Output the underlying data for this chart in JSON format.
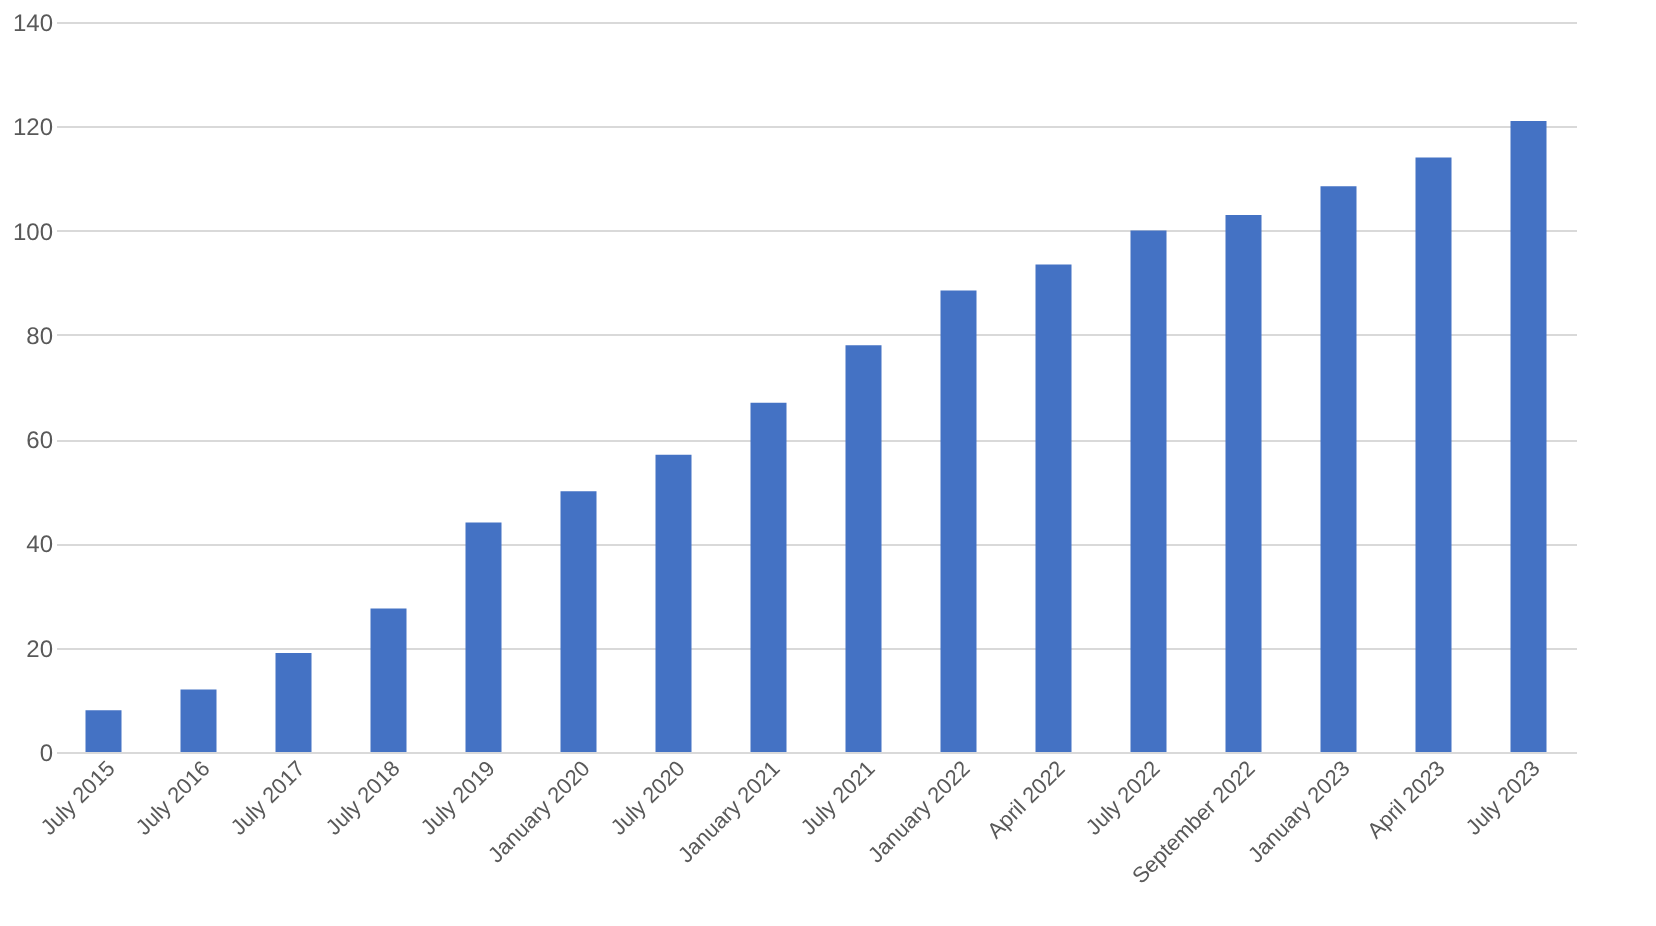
{
  "chart_data": {
    "type": "bar",
    "categories": [
      "July 2015",
      "July 2016",
      "July 2017",
      "July 2018",
      "July 2019",
      "January 2020",
      "July 2020",
      "January 2021",
      "July 2021",
      "January 2022",
      "April 2022",
      "July 2022",
      "September 2022",
      "January 2023",
      "April 2023",
      "July 2023"
    ],
    "values": [
      8,
      12,
      19,
      27.5,
      44,
      50,
      57,
      67,
      78,
      88.5,
      93.5,
      100,
      103,
      108.5,
      114,
      121
    ],
    "color": "#4472c4",
    "ylim": [
      0,
      140
    ],
    "yticks": [
      0,
      20,
      40,
      60,
      80,
      100,
      120,
      140
    ],
    "grid": "y"
  }
}
